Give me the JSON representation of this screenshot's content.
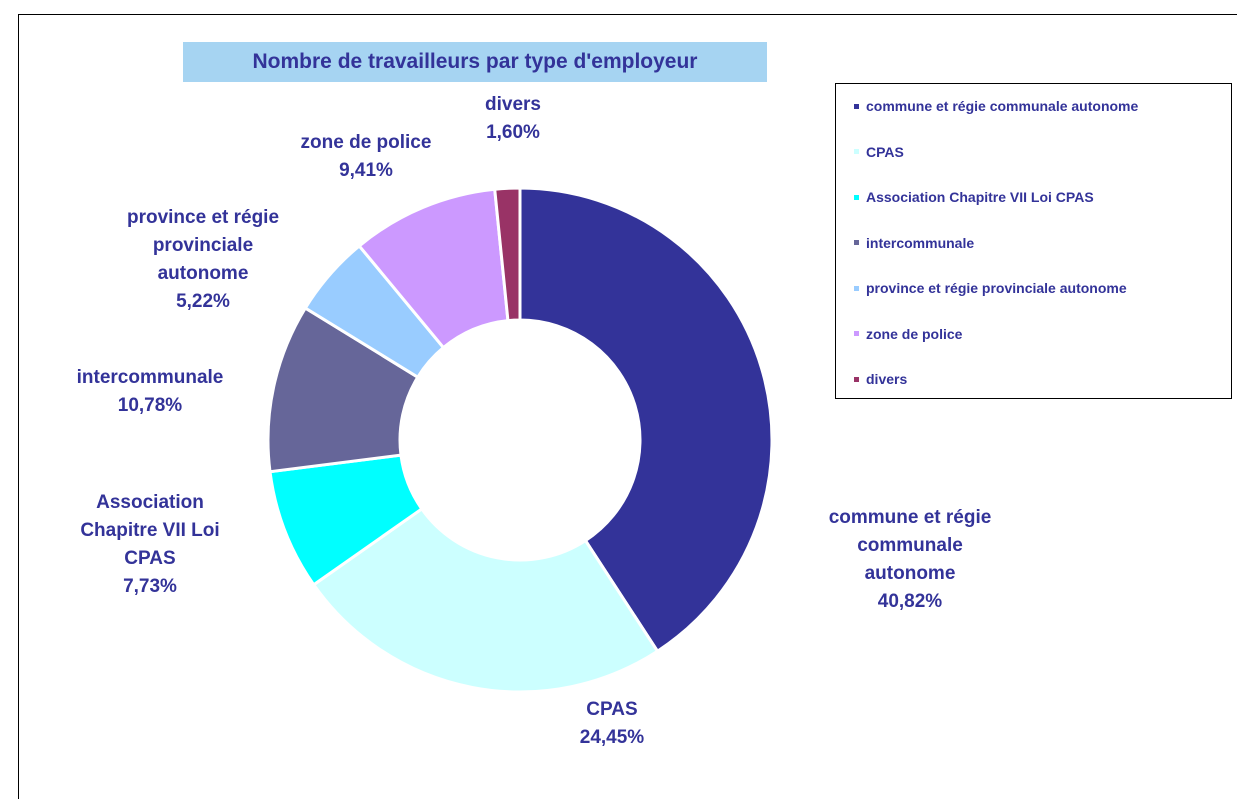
{
  "chart_data": {
    "type": "donut",
    "title": "Nombre de travailleurs par type d'employeur",
    "categories": [
      "commune et régie communale autonome",
      "CPAS",
      "Association Chapitre VII  Loi CPAS",
      "intercommunale",
      "province et régie provinciale autonome",
      "zone de police",
      "divers"
    ],
    "values": [
      40.82,
      24.45,
      7.73,
      10.78,
      5.22,
      9.41,
      1.6
    ],
    "value_labels": [
      "40,82%",
      "24,45%",
      "7,73%",
      "10,78%",
      "5,22%",
      "9,41%",
      "1,60%"
    ],
    "colors": [
      "#333399",
      "#ccffff",
      "#00ffff",
      "#666699",
      "#99ccff",
      "#cc99ff",
      "#993366"
    ],
    "legend": "right"
  }
}
